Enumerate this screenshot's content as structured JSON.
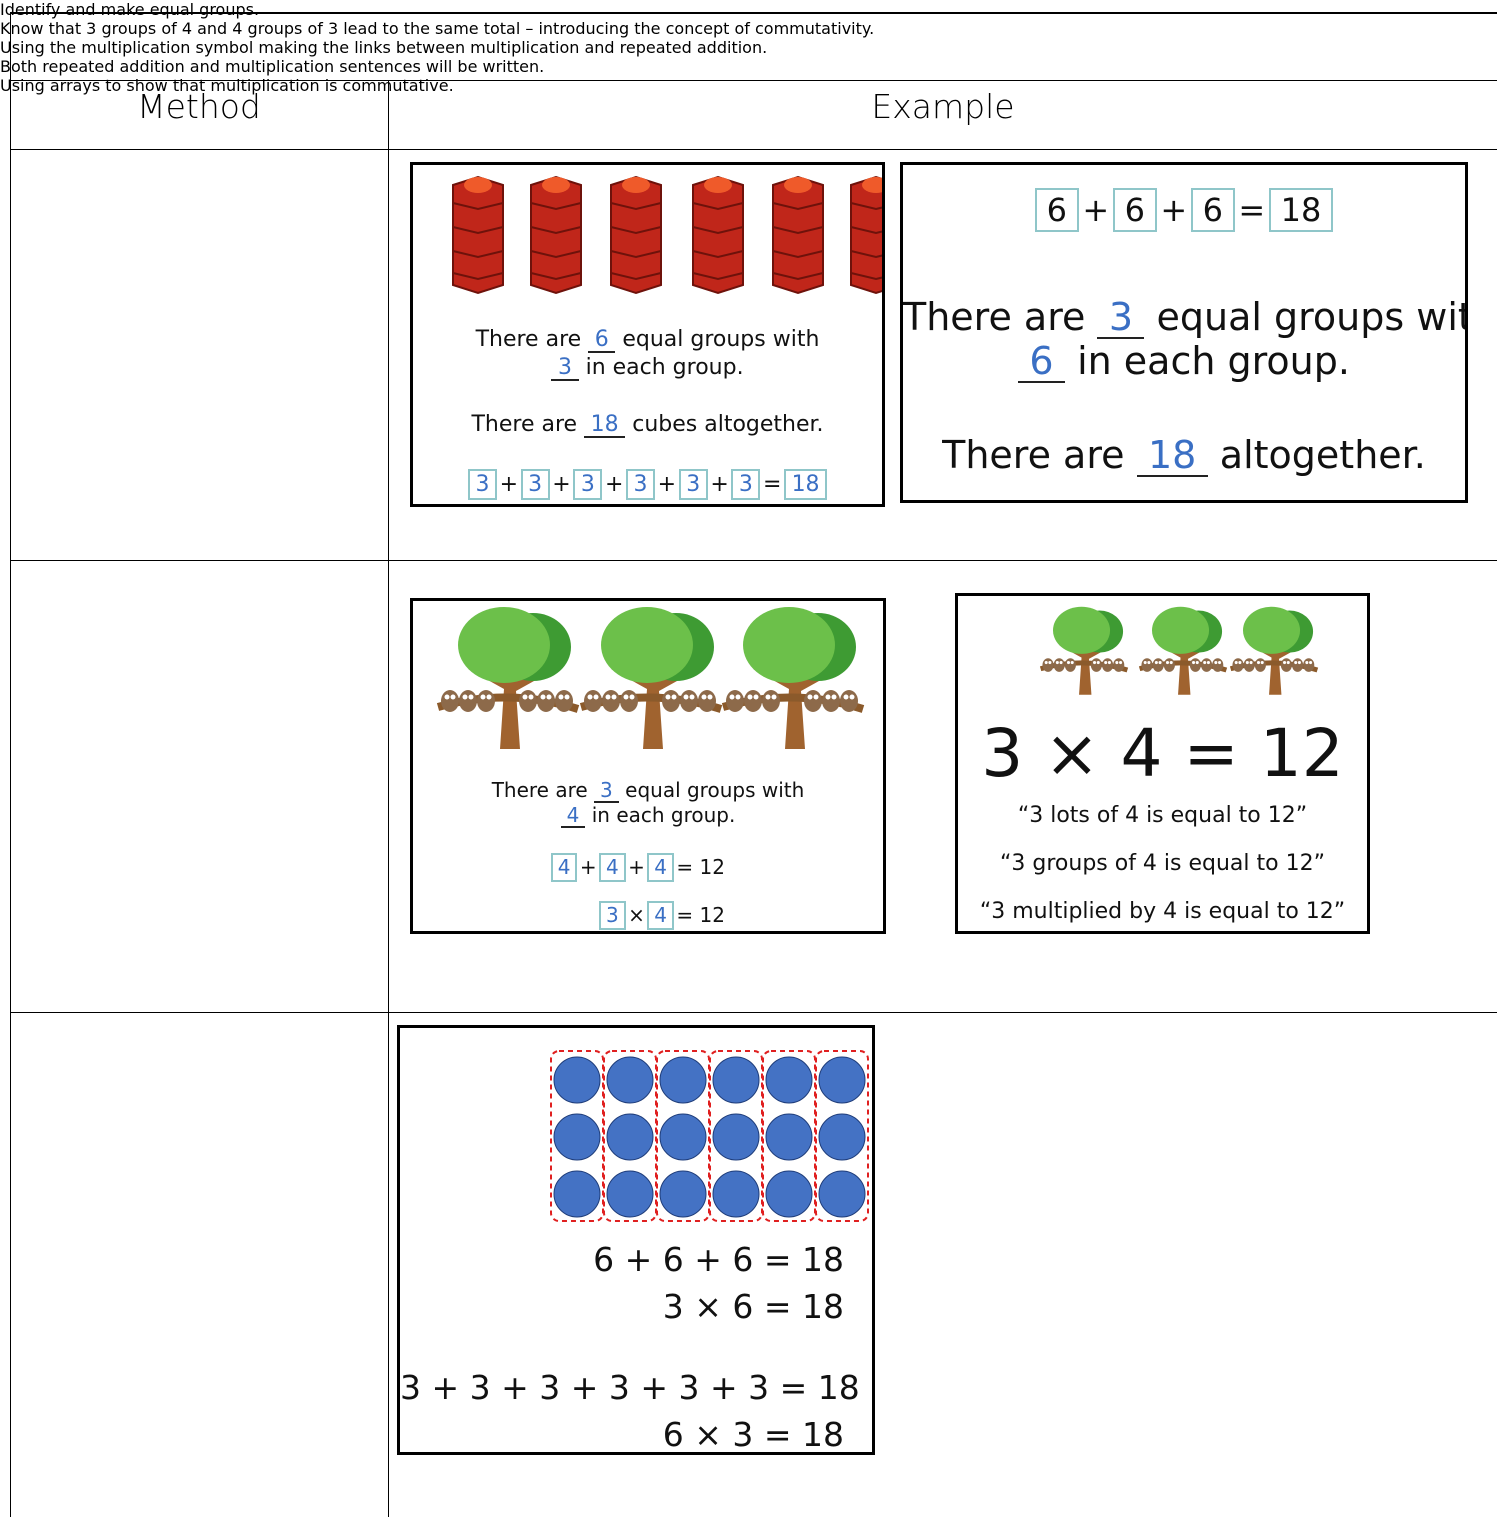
{
  "table": {
    "header": {
      "method": "Method",
      "example": "Example"
    },
    "rows": [
      {
        "method": {
          "heading": "Identify and make equal groups.",
          "note": "Know that 3 groups of 4 and 4 groups of 3 lead to the same total – introducing the concept of commutativity."
        },
        "examples": [
          {
            "lines": [
              [
                {
                  "text": "There are "
                },
                {
                  "blank": "6"
                },
                {
                  "text": " equal groups with"
                }
              ],
              [
                {
                  "blank": "3"
                },
                {
                  "text": " in each group."
                }
              ],
              [
                {
                  "text": "There are "
                },
                {
                  "blank": "18"
                },
                {
                  "text": " cubes altogether."
                }
              ],
              [
                {
                  "box": "3"
                },
                {
                  "text": "+"
                },
                {
                  "box": "3"
                },
                {
                  "text": "+"
                },
                {
                  "box": "3"
                },
                {
                  "text": "+"
                },
                {
                  "box": "3"
                },
                {
                  "text": "+"
                },
                {
                  "box": "3"
                },
                {
                  "text": "+"
                },
                {
                  "box": "3"
                },
                {
                  "text": "="
                },
                {
                  "box": "18"
                }
              ]
            ]
          },
          {
            "lines": [
              [
                {
                  "box": "6"
                },
                {
                  "text": "+"
                },
                {
                  "box": "6"
                },
                {
                  "text": "+"
                },
                {
                  "box": "6"
                },
                {
                  "text": "="
                },
                {
                  "box": "18"
                }
              ],
              [
                {
                  "text": "There are "
                },
                {
                  "blank": "3"
                },
                {
                  "text": " equal groups with"
                }
              ],
              [
                {
                  "blank": "6"
                },
                {
                  "text": " in each group."
                }
              ],
              [
                {
                  "text": "There are "
                },
                {
                  "blank": "18"
                },
                {
                  "text": " altogether."
                }
              ]
            ]
          }
        ]
      },
      {
        "method": {
          "heading": "Using the multiplication symbol making the links between multiplication and repeated addition.",
          "note": "Both repeated addition and multiplication sentences will be written."
        },
        "examples": [
          {
            "lines": [
              [
                {
                  "text": "There are "
                },
                {
                  "blank": "3"
                },
                {
                  "text": " equal groups with"
                }
              ],
              [
                {
                  "blank": "4"
                },
                {
                  "text": " in each group."
                }
              ],
              [
                {
                  "box": "4"
                },
                {
                  "text": "+"
                },
                {
                  "box": "4"
                },
                {
                  "text": "+"
                },
                {
                  "box": "4"
                },
                {
                  "text": "= 12"
                }
              ],
              [
                {
                  "box": "3"
                },
                {
                  "text": "×"
                },
                {
                  "box": "4"
                },
                {
                  "text": "= 12"
                }
              ]
            ]
          },
          {
            "lines": [
              [
                {
                  "text": "3 × 4 = 12"
                }
              ],
              [
                {
                  "text": "“3 lots of 4 is equal to 12”"
                }
              ],
              [
                {
                  "text": "“3 groups of 4 is equal to 12”"
                }
              ],
              [
                {
                  "text": "“3 multiplied by 4 is equal to 12”"
                }
              ]
            ]
          }
        ]
      },
      {
        "method": {
          "heading": "Using arrays to show that multiplication is commutative."
        },
        "examples": [
          {
            "lines": [
              [
                {
                  "text": "6 + 6 + 6 = 18"
                }
              ],
              [
                {
                  "text": "3 × 6 = 18"
                }
              ],
              [
                {
                  "text": "3 + 3 + 3 + 3 + 3 + 3 = 18"
                }
              ],
              [
                {
                  "text": "6 × 3 = 18"
                }
              ]
            ]
          }
        ]
      }
    ]
  }
}
